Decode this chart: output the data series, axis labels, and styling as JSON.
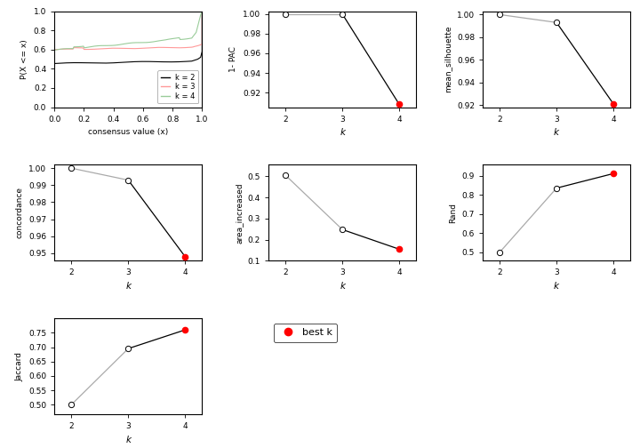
{
  "ecdf": {
    "colors": {
      "k2": "#000000",
      "k3": "#ff9999",
      "k4": "#99cc99"
    },
    "xlabel": "consensus value (x)",
    "ylabel": "P(X <= x)",
    "legend": [
      "k = 2",
      "k = 3",
      "k = 4"
    ]
  },
  "pac": {
    "k": [
      2.0,
      3.0,
      4.0
    ],
    "y": [
      1.0,
      1.0,
      0.908
    ],
    "best_k": 4,
    "ylabel": "1- PAC",
    "xlabel": "k",
    "ylim": [
      0.905,
      1.003
    ],
    "yticks": [
      0.92,
      0.94,
      0.96,
      0.98,
      1.0
    ],
    "ytick_labels": [
      "0.92",
      "0.94",
      "0.96",
      "0.98",
      "1.00"
    ]
  },
  "silhouette": {
    "k": [
      2.0,
      3.0,
      4.0
    ],
    "y": [
      1.0,
      0.993,
      0.921
    ],
    "best_k": 4,
    "ylabel": "mean_silhouette",
    "xlabel": "k",
    "ylim": [
      0.918,
      1.003
    ],
    "yticks": [
      0.92,
      0.94,
      0.96,
      0.98,
      1.0
    ],
    "ytick_labels": [
      "0.92",
      "0.94",
      "0.96",
      "0.98",
      "1.00"
    ]
  },
  "concordance": {
    "k": [
      2.0,
      3.0,
      4.0
    ],
    "y": [
      1.0,
      0.993,
      0.948
    ],
    "best_k": 4,
    "ylabel": "concordance",
    "xlabel": "k",
    "ylim": [
      0.9455,
      1.002
    ],
    "yticks": [
      0.95,
      0.96,
      0.97,
      0.98,
      0.99,
      1.0
    ],
    "ytick_labels": [
      "0.95",
      "0.96",
      "0.97",
      "0.98",
      "0.99",
      "1.00"
    ]
  },
  "area_increased": {
    "k": [
      2.0,
      3.0,
      4.0
    ],
    "y": [
      0.505,
      0.248,
      0.155
    ],
    "best_k": 4,
    "ylabel": "area_increased",
    "xlabel": "k",
    "ylim": [
      0.105,
      0.555
    ],
    "yticks": [
      0.1,
      0.2,
      0.3,
      0.4,
      0.5
    ],
    "ytick_labels": [
      "0.1",
      "0.2",
      "0.3",
      "0.4",
      "0.5"
    ]
  },
  "rand": {
    "k": [
      2.0,
      3.0,
      4.0
    ],
    "y": [
      0.5,
      0.836,
      0.912
    ],
    "best_k": 4,
    "ylabel": "Rand",
    "xlabel": "k",
    "ylim": [
      0.455,
      0.958
    ],
    "yticks": [
      0.5,
      0.6,
      0.7,
      0.8,
      0.9
    ],
    "ytick_labels": [
      "0.5",
      "0.6",
      "0.7",
      "0.8",
      "0.9"
    ]
  },
  "jaccard": {
    "k": [
      2.0,
      3.0,
      4.0
    ],
    "y": [
      0.5,
      0.695,
      0.76
    ],
    "best_k": 4,
    "ylabel": "Jaccard",
    "xlabel": "k",
    "ylim": [
      0.466,
      0.8
    ],
    "yticks": [
      0.5,
      0.55,
      0.6,
      0.65,
      0.7,
      0.75
    ],
    "ytick_labels": [
      "0.50",
      "0.55",
      "0.60",
      "0.65",
      "0.70",
      "0.75"
    ]
  },
  "legend_label": "best k",
  "best_k_color": "#ff0000",
  "open_circle_color": "#ffffff",
  "line_color": "#000000",
  "segment_color": "#aaaaaa",
  "bg_color": "#ffffff"
}
